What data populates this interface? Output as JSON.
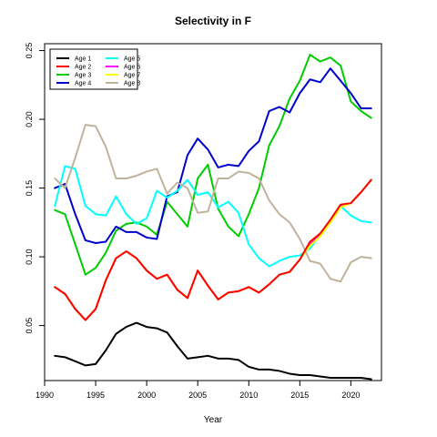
{
  "chart_data": {
    "type": "line",
    "title": "Selectivity in F",
    "xlabel": "Year",
    "ylabel": "",
    "xlim": [
      1990,
      2023
    ],
    "ylim": [
      0.01,
      0.255
    ],
    "xticks": [
      1990,
      1995,
      2000,
      2005,
      2010,
      2015,
      2020
    ],
    "xtick_labels": [
      "1990",
      "1995",
      "2000",
      "2005",
      "2010",
      "2015",
      "2020"
    ],
    "yticks": [
      0.05,
      0.1,
      0.15,
      0.2,
      0.25
    ],
    "ytick_labels": [
      "0.05",
      "0.10",
      "0.15",
      "0.20",
      "0.25"
    ],
    "grid": false,
    "legend_position": "top-left",
    "x": [
      1991,
      1992,
      1993,
      1994,
      1995,
      1996,
      1997,
      1998,
      1999,
      2000,
      2001,
      2002,
      2003,
      2004,
      2005,
      2006,
      2007,
      2008,
      2009,
      2010,
      2011,
      2012,
      2013,
      2014,
      2015,
      2016,
      2017,
      2018,
      2019,
      2020,
      2021,
      2022
    ],
    "series": [
      {
        "name": "Age 1",
        "color": "#000000",
        "values": [
          0.028,
          0.027,
          0.024,
          0.021,
          0.022,
          0.032,
          0.044,
          0.049,
          0.052,
          0.049,
          0.048,
          0.045,
          0.035,
          0.026,
          0.027,
          0.028,
          0.026,
          0.026,
          0.025,
          0.02,
          0.018,
          0.018,
          0.017,
          0.015,
          0.014,
          0.014,
          0.013,
          0.012,
          0.012,
          0.012,
          0.012,
          0.011
        ]
      },
      {
        "name": "Age 2",
        "color": "#ff0000",
        "values": [
          0.078,
          0.073,
          0.062,
          0.054,
          0.062,
          0.083,
          0.099,
          0.104,
          0.099,
          0.09,
          0.084,
          0.087,
          0.076,
          0.07,
          0.09,
          0.079,
          0.069,
          0.074,
          0.075,
          0.078,
          0.074,
          0.08,
          0.087,
          0.089,
          0.098,
          0.111,
          0.117,
          0.127,
          0.138,
          0.139,
          0.147,
          0.156
        ]
      },
      {
        "name": "Age 3",
        "color": "#00cc00",
        "values": [
          0.134,
          0.131,
          0.109,
          0.087,
          0.092,
          0.103,
          0.119,
          0.124,
          0.125,
          0.122,
          0.116,
          0.14,
          0.131,
          0.122,
          0.157,
          0.167,
          0.135,
          0.122,
          0.115,
          0.131,
          0.15,
          0.181,
          0.195,
          0.215,
          0.228,
          0.247,
          0.242,
          0.245,
          0.239,
          0.213,
          0.206,
          0.201
        ]
      },
      {
        "name": "Age 4",
        "color": "#0000cc",
        "values": [
          0.15,
          0.153,
          0.131,
          0.112,
          0.11,
          0.111,
          0.122,
          0.118,
          0.118,
          0.114,
          0.113,
          0.144,
          0.147,
          0.174,
          0.186,
          0.178,
          0.165,
          0.167,
          0.166,
          0.177,
          0.184,
          0.206,
          0.209,
          0.205,
          0.219,
          0.229,
          0.227,
          0.237,
          0.228,
          0.219,
          0.208,
          0.208
        ]
      },
      {
        "name": "Age 5",
        "color": "#00ffff",
        "values": [
          0.137,
          0.166,
          0.164,
          0.137,
          0.131,
          0.13,
          0.144,
          0.131,
          0.124,
          0.128,
          0.148,
          0.143,
          0.148,
          0.156,
          0.145,
          0.147,
          0.136,
          0.14,
          0.132,
          0.109,
          0.099,
          0.093,
          0.097,
          0.1,
          0.101,
          0.106,
          0.116,
          0.125,
          0.137,
          0.13,
          0.126,
          0.125
        ]
      },
      {
        "name": "Age 6",
        "color": "#ff00ff",
        "values": [
          0.078,
          0.073,
          0.062,
          0.054,
          0.062,
          0.083,
          0.099,
          0.104,
          0.099,
          0.09,
          0.084,
          0.087,
          0.076,
          0.07,
          0.09,
          0.079,
          0.069,
          0.074,
          0.075,
          0.078,
          0.074,
          0.08,
          0.087,
          0.089,
          0.098,
          0.109,
          0.116,
          0.126,
          0.137,
          0.139,
          0.147,
          0.156
        ]
      },
      {
        "name": "Age 7",
        "color": "#ffff00",
        "values": [
          0.078,
          0.073,
          0.062,
          0.054,
          0.062,
          0.083,
          0.099,
          0.104,
          0.099,
          0.09,
          0.084,
          0.087,
          0.076,
          0.07,
          0.09,
          0.079,
          0.069,
          0.074,
          0.075,
          0.078,
          0.074,
          0.08,
          0.087,
          0.089,
          0.098,
          0.108,
          0.115,
          0.125,
          0.136,
          0.139,
          0.147,
          0.156
        ]
      },
      {
        "name": "Age 8",
        "color": "#c0b39c",
        "values": [
          0.157,
          0.15,
          0.172,
          0.196,
          0.195,
          0.18,
          0.157,
          0.157,
          0.159,
          0.162,
          0.164,
          0.146,
          0.154,
          0.15,
          0.132,
          0.133,
          0.157,
          0.157,
          0.162,
          0.161,
          0.157,
          0.141,
          0.131,
          0.125,
          0.113,
          0.097,
          0.095,
          0.084,
          0.082,
          0.096,
          0.1,
          0.099
        ]
      }
    ]
  }
}
